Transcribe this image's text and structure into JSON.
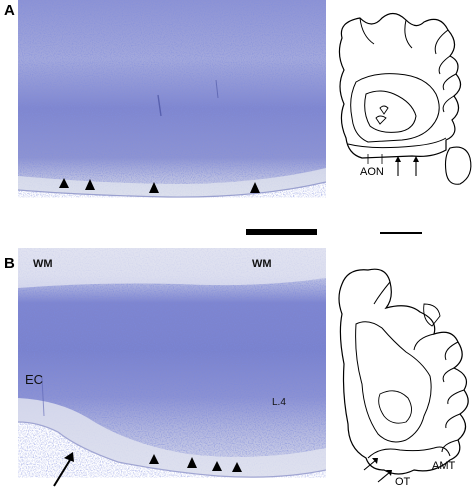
{
  "panel_a": {
    "letter": "A",
    "schematic_labels": {
      "aon": "AON"
    }
  },
  "panel_b": {
    "letter": "B",
    "micro_labels": {
      "wm_left": "WM",
      "wm_right": "WM",
      "ec": "EC",
      "layer4": "L.4"
    },
    "schematic_labels": {
      "ot": "OT",
      "amt": "AMT"
    }
  },
  "colors": {
    "nissl_dark": "#4a55b8",
    "nissl_light": "#c9cde6",
    "white_matter": "#dfe2ef",
    "pial_edge": "#eef0f5"
  }
}
